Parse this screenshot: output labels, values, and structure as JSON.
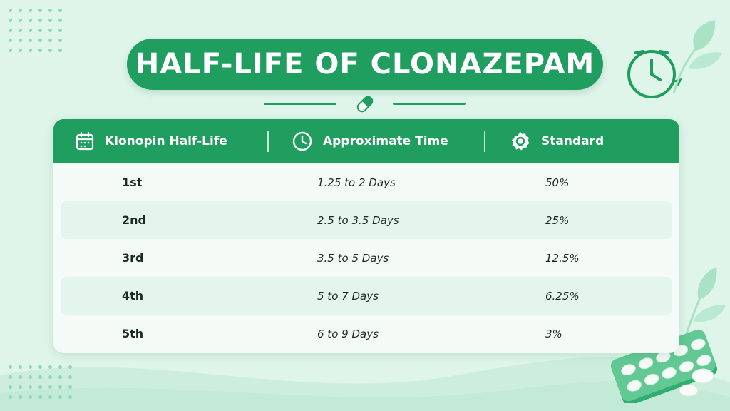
{
  "title": "HALF-LIFE OF CLONAZEPAM",
  "colors": {
    "primary": "#1f9e5f",
    "background": "#dff5ea",
    "card": "#f4fbf7",
    "row_alt": "#e3f5ec",
    "text": "#1c2a24"
  },
  "icons": {
    "title_divider": "capsule-icon",
    "decor_top_right": "clock-refresh-icon",
    "decor_bottom_right": "pill-blister-icon",
    "leaves": "leaf-icon"
  },
  "table": {
    "headers": [
      {
        "label": "Klonopin Half-Life",
        "icon": "calendar-icon"
      },
      {
        "label": "Approximate Time",
        "icon": "clock-icon"
      },
      {
        "label": "Standard",
        "icon": "badge-icon"
      }
    ],
    "rows": [
      {
        "half_life": "1st",
        "time": "1.25 to 2 Days",
        "standard": "50%"
      },
      {
        "half_life": "2nd",
        "time": "2.5 to 3.5 Days",
        "standard": "25%"
      },
      {
        "half_life": "3rd",
        "time": "3.5 to 5 Days",
        "standard": "12.5%"
      },
      {
        "half_life": "4th",
        "time": "5 to 7 Days",
        "standard": "6.25%"
      },
      {
        "half_life": "5th",
        "time": "6 to 9 Days",
        "standard": "3%"
      }
    ]
  }
}
